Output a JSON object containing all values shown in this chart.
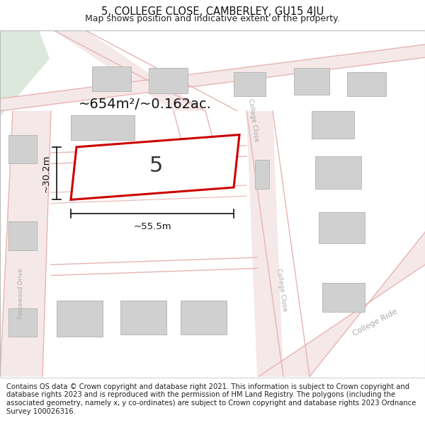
{
  "title": "5, COLLEGE CLOSE, CAMBERLEY, GU15 4JU",
  "subtitle": "Map shows position and indicative extent of the property.",
  "footer": "Contains OS data © Crown copyright and database right 2021. This information is subject to Crown copyright and database rights 2023 and is reproduced with the permission of HM Land Registry. The polygons (including the associated geometry, namely x, y co-ordinates) are subject to Crown copyright and database rights 2023 Ordnance Survey 100026316.",
  "bg_map_color": "#f2eeee",
  "bg_color": "#ffffff",
  "road_line_color": "#e8b4b4",
  "building_color": "#d0d0d0",
  "building_outline": "#b8b8b8",
  "highlight_color": "#cc0000",
  "highlight_fill": "#ffffff",
  "green_patch_color": "#dce8dc",
  "area_text": "~654m²/~0.162ac.",
  "label_5": "5",
  "dim_width": "~55.5m",
  "dim_height": "~30.2m",
  "road_label_college_close_top": "College Close",
  "road_label_college_close_bot": "College Close",
  "road_label_fossewood": "Fossewood Drive",
  "road_label_college_ride": "College Ride",
  "title_fontsize": 10.5,
  "subtitle_fontsize": 9,
  "footer_fontsize": 7.2
}
